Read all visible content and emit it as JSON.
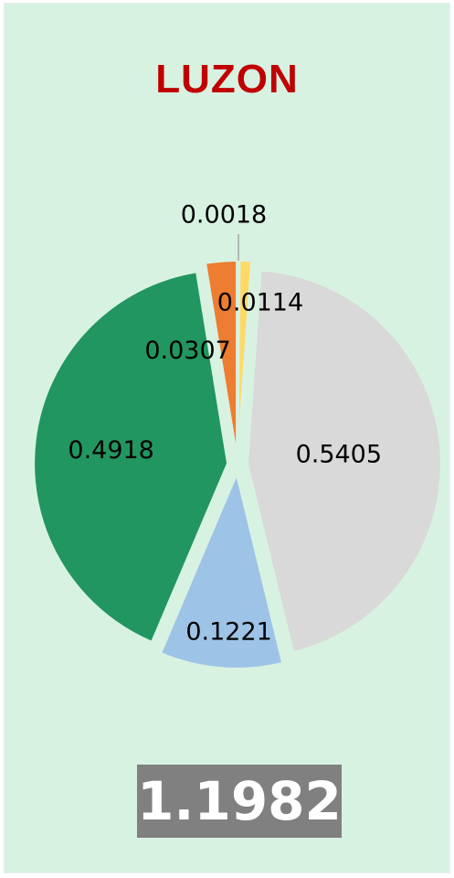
{
  "chart_data": {
    "type": "pie",
    "title": "LUZON",
    "slices": [
      {
        "value": 0.0018,
        "label": "0.0018",
        "color": "#7030a0"
      },
      {
        "value": 0.0114,
        "label": "0.0114",
        "color": "#ffd966"
      },
      {
        "value": 0.5405,
        "label": "0.5405",
        "color": "#d9d9d9"
      },
      {
        "value": 0.1221,
        "label": "0.1221",
        "color": "#9dc3e6"
      },
      {
        "value": 0.4918,
        "label": "0.4918",
        "color": "#219660"
      },
      {
        "value": 0.0307,
        "label": "0.0307",
        "color": "#ed7d31"
      }
    ],
    "total": "1.1982",
    "exploded": true
  },
  "colors": {
    "background": "#d8f2e2",
    "title": "#c00000",
    "total_box": "#808080"
  }
}
